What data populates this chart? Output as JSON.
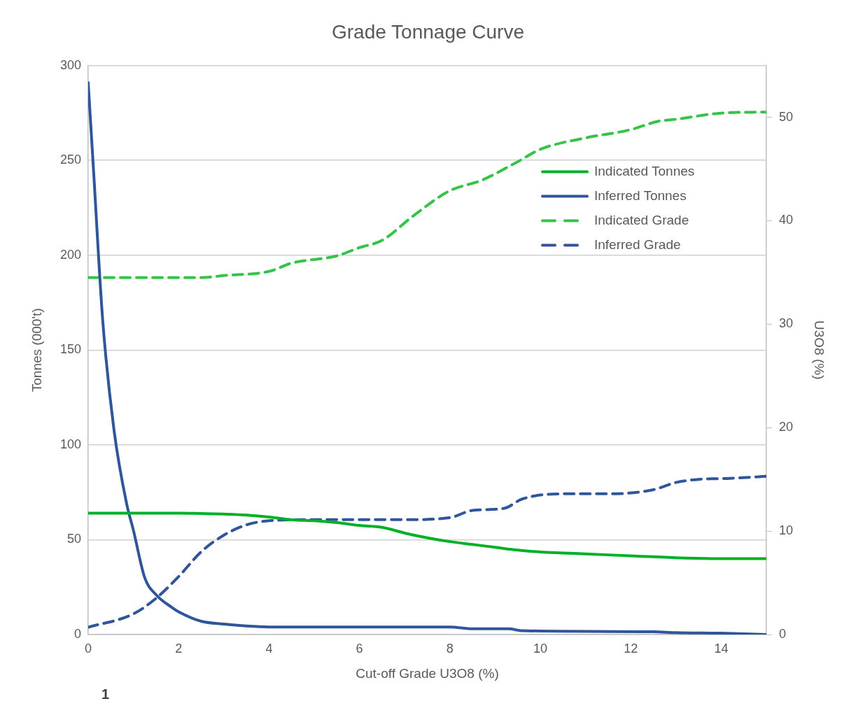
{
  "chart_data": {
    "type": "line",
    "title": "Grade Tonnage Curve",
    "xlabel": "Cut-off Grade U3O8 (%)",
    "ylabel": "Tonnes (000't)",
    "y2label": "U3O8 (%)",
    "xlim": [
      0,
      15
    ],
    "xticks": [
      0,
      2,
      4,
      6,
      8,
      10,
      12,
      14
    ],
    "ylim": [
      0,
      300
    ],
    "yticks": [
      0,
      50,
      100,
      150,
      200,
      250,
      300
    ],
    "y2lim": [
      0,
      55
    ],
    "y2ticks": [
      0,
      10,
      20,
      30,
      40,
      50
    ],
    "grid": "y",
    "legend": "top right",
    "marker": "none",
    "series": [
      {
        "name": "Indicated Tonnes",
        "color": "#00b026",
        "line_style": "solid",
        "x": [
          0,
          1,
          2,
          2.5,
          3,
          3.5,
          4,
          4.5,
          5,
          5.5,
          6,
          6.5,
          7,
          7.5,
          8,
          8.5,
          9,
          9.5,
          10,
          10.5,
          11,
          12,
          12.5,
          13,
          14,
          15
        ],
        "values": [
          64,
          64,
          64,
          63.8,
          63.5,
          63,
          62,
          60.5,
          60,
          59,
          57.5,
          56.5,
          53.5,
          51,
          49,
          47.5,
          46,
          44.5,
          43.5,
          43,
          42.5,
          41.5,
          41,
          40.5,
          40,
          40
        ]
      },
      {
        "name": "Inferred Tonnes",
        "color": "#2f559a",
        "line_style": "solid",
        "x": [
          0,
          0.12,
          0.32,
          0.57,
          0.85,
          1,
          1.25,
          1.5,
          1.87,
          2,
          2.5,
          3,
          3.5,
          4,
          8,
          8.5,
          9.3,
          9.6,
          12.5,
          13,
          14,
          15
        ],
        "values": [
          291,
          244,
          166,
          108,
          69,
          55,
          30,
          21,
          14,
          12,
          7,
          5.5,
          4.5,
          4,
          4,
          3,
          3,
          2,
          1.5,
          1,
          0.7,
          0
        ]
      },
      {
        "name": "Indicated Grade",
        "color": "#37c24a",
        "line_style": "dashed",
        "axis": "y2",
        "x": [
          0,
          2.5,
          3,
          4,
          4.5,
          5.5,
          6,
          6.5,
          7.2,
          8,
          8.7,
          9.5,
          10,
          11,
          12,
          12.6,
          13,
          14,
          15
        ],
        "values": [
          34.5,
          34.5,
          34.7,
          35.1,
          35.9,
          36.6,
          37.4,
          38.1,
          40.5,
          42.9,
          43.9,
          45.7,
          46.9,
          48,
          48.8,
          49.6,
          49.8,
          50.4,
          50.5
        ]
      },
      {
        "name": "Inferred Grade",
        "color": "#2f559a",
        "line_style": "dashed",
        "axis": "y2",
        "x": [
          0,
          1,
          1.5,
          2,
          2.5,
          3,
          3.5,
          4,
          5,
          7,
          8,
          8.5,
          9.2,
          9.6,
          10.5,
          11.5,
          12.5,
          13,
          13.5,
          14.2,
          15
        ],
        "values": [
          0.7,
          2,
          3.5,
          5.6,
          8,
          9.6,
          10.6,
          11,
          11.1,
          11.1,
          11.3,
          12,
          12.2,
          13.1,
          13.6,
          13.6,
          14,
          14.7,
          15,
          15.1,
          15.3
        ]
      }
    ],
    "annotations": [
      "1"
    ]
  }
}
